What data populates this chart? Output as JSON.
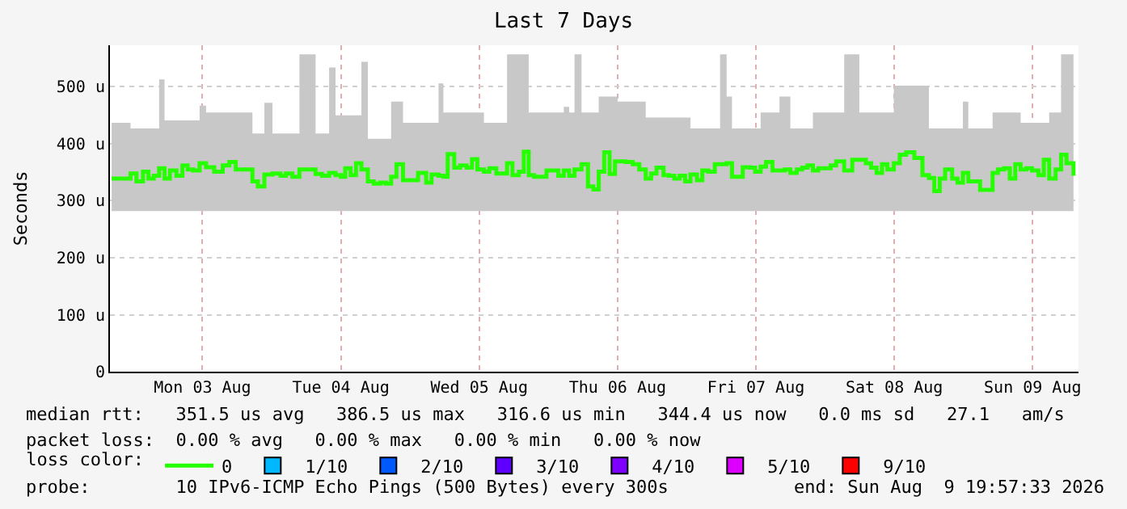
{
  "chart_data": {
    "type": "step",
    "title": "Last 7 Days",
    "ylabel": "Seconds",
    "legend_title": "loss color:",
    "xlim": [
      "2026-08-02T19:57",
      "2026-08-09T19:57"
    ],
    "xticks": [
      {
        "value": "2026-08-03T12:00",
        "label": "Mon 03 Aug"
      },
      {
        "value": "2026-08-04T12:00",
        "label": "Tue 04 Aug"
      },
      {
        "value": "2026-08-05T12:00",
        "label": "Wed 05 Aug"
      },
      {
        "value": "2026-08-06T12:00",
        "label": "Thu 06 Aug"
      },
      {
        "value": "2026-08-07T12:00",
        "label": "Fri 07 Aug"
      },
      {
        "value": "2026-08-08T12:00",
        "label": "Sat 08 Aug"
      },
      {
        "value": "2026-08-09T12:00",
        "label": "Sun 09 Aug"
      }
    ],
    "ylim": [
      0,
      573
    ],
    "yticks": [
      0,
      {
        "value": 100,
        "label": "100 u"
      },
      {
        "value": 200,
        "label": "200 u"
      },
      {
        "value": 300,
        "label": "300 u"
      },
      {
        "value": 400,
        "label": "400 u"
      },
      {
        "value": 500,
        "label": "500 u"
      }
    ],
    "grid": true,
    "legend": "bottom",
    "x": [
      "2026-08-02T20:15",
      "2026-08-02T22:24",
      "2026-08-02T23:31",
      "2026-08-03T00:33",
      "2026-08-03T01:41",
      "2026-08-03T02:37",
      "2026-08-03T03:33",
      "2026-08-03T04:29",
      "2026-08-03T05:25",
      "2026-08-03T06:21",
      "2026-08-03T07:29",
      "2026-08-03T08:31",
      "2026-08-03T09:26",
      "2026-08-03T10:23",
      "2026-08-03T11:30",
      "2026-08-03T12:37",
      "2026-08-03T14:02",
      "2026-08-03T15:31",
      "2026-08-03T16:39",
      "2026-08-03T17:46",
      "2026-08-03T18:59",
      "2026-08-03T20:40",
      "2026-08-03T21:37",
      "2026-08-03T22:44",
      "2026-08-04T00:08",
      "2026-08-04T01:32",
      "2026-08-04T02:28",
      "2026-08-04T03:35",
      "2026-08-04T04:49",
      "2026-08-04T06:13",
      "2026-08-04T07:37",
      "2026-08-04T08:44",
      "2026-08-04T09:58",
      "2026-08-04T11:05",
      "2026-08-04T12:01",
      "2026-08-04T12:46",
      "2026-08-04T13:42",
      "2026-08-04T14:38",
      "2026-08-04T15:34",
      "2026-08-04T16:41",
      "2026-08-04T17:43",
      "2026-08-04T18:51",
      "2026-08-04T19:47",
      "2026-08-04T20:43",
      "2026-08-04T21:39",
      "2026-08-04T22:47",
      "2026-08-05T00:28",
      "2026-08-05T01:24",
      "2026-08-05T02:48",
      "2026-08-05T03:44",
      "2026-08-05T04:57",
      "2026-08-05T05:47",
      "2026-08-05T06:32",
      "2026-08-05T07:40",
      "2026-08-05T08:41",
      "2026-08-05T09:49",
      "2026-08-05T10:45",
      "2026-08-05T11:41",
      "2026-08-05T12:49",
      "2026-08-05T13:45",
      "2026-08-05T14:58",
      "2026-08-05T15:54",
      "2026-08-05T16:50",
      "2026-08-05T17:46",
      "2026-08-05T18:53",
      "2026-08-05T19:44",
      "2026-08-05T20:35",
      "2026-08-05T21:31",
      "2026-08-05T22:44",
      "2026-08-05T23:40",
      "2026-08-06T00:47",
      "2026-08-06T01:43",
      "2026-08-06T02:40",
      "2026-08-06T03:36",
      "2026-08-06T04:32",
      "2026-08-06T05:45",
      "2026-08-06T06:52",
      "2026-08-06T07:49",
      "2026-08-06T08:44",
      "2026-08-06T09:41",
      "2026-08-06T10:37",
      "2026-08-06T11:33",
      "2026-08-06T12:01",
      "2026-08-06T13:25",
      "2026-08-06T14:38",
      "2026-08-06T15:46",
      "2026-08-06T16:53",
      "2026-08-06T17:49",
      "2026-08-06T18:45",
      "2026-08-06T19:58",
      "2026-08-06T20:54",
      "2026-08-06T21:50",
      "2026-08-06T22:46",
      "2026-08-06T23:43",
      "2026-08-07T00:39",
      "2026-08-07T01:46",
      "2026-08-07T02:42",
      "2026-08-07T03:44",
      "2026-08-07T04:52",
      "2026-08-07T05:47",
      "2026-08-07T06:55",
      "2026-08-07T07:51",
      "2026-08-07T08:47",
      "2026-08-07T09:43",
      "2026-08-07T10:56",
      "2026-08-07T11:52",
      "2026-08-07T12:49",
      "2026-08-07T13:45",
      "2026-08-07T14:52",
      "2026-08-07T16:05",
      "2026-08-07T17:01",
      "2026-08-07T17:58",
      "2026-08-07T19:05",
      "2026-08-07T20:01",
      "2026-08-07T20:57",
      "2026-08-07T21:53",
      "2026-08-07T22:49",
      "2026-08-08T00:02",
      "2026-08-08T00:58",
      "2026-08-08T01:55",
      "2026-08-08T03:19",
      "2026-08-08T04:43",
      "2026-08-08T05:56",
      "2026-08-08T07:04",
      "2026-08-08T07:59",
      "2026-08-08T08:56",
      "2026-08-08T09:52",
      "2026-08-08T10:48",
      "2026-08-08T11:55",
      "2026-08-08T12:57",
      "2026-08-08T14:04",
      "2026-08-08T15:29",
      "2026-08-08T16:53",
      "2026-08-08T18:00",
      "2026-08-08T18:56",
      "2026-08-08T19:53",
      "2026-08-08T20:49",
      "2026-08-08T22:02",
      "2026-08-08T22:58",
      "2026-08-08T23:54",
      "2026-08-09T00:50",
      "2026-08-09T01:46",
      "2026-08-09T02:53",
      "2026-08-09T04:07",
      "2026-08-09T05:03",
      "2026-08-09T05:59",
      "2026-08-09T07:01",
      "2026-08-09T08:02",
      "2026-08-09T08:59",
      "2026-08-09T09:55",
      "2026-08-09T10:56",
      "2026-08-09T11:53",
      "2026-08-09T13:00",
      "2026-08-09T13:56",
      "2026-08-09T14:52",
      "2026-08-09T15:59",
      "2026-08-09T16:56",
      "2026-08-09T17:52",
      "2026-08-09T19:05"
    ],
    "series": [
      {
        "name": "0",
        "color": "#26ff00",
        "values": [
          339,
          339,
          348,
          334,
          351,
          339,
          344,
          357,
          339,
          353,
          344,
          362,
          355,
          353,
          366,
          359,
          351,
          362,
          368,
          355,
          355,
          334,
          325,
          346,
          348,
          344,
          348,
          342,
          355,
          355,
          347,
          344,
          349,
          345,
          342,
          357,
          345,
          366,
          355,
          334,
          330,
          332,
          330,
          342,
          364,
          336,
          336,
          349,
          332,
          346,
          344,
          342,
          382,
          358,
          362,
          358,
          373,
          355,
          351,
          357,
          348,
          348,
          366,
          345,
          351,
          386,
          345,
          342,
          342,
          353,
          353,
          344,
          353,
          344,
          355,
          364,
          325,
          320,
          351,
          385,
          347,
          369,
          369,
          368,
          364,
          355,
          339,
          348,
          358,
          345,
          344,
          339,
          344,
          334,
          346,
          336,
          353,
          351,
          364,
          364,
          366,
          342,
          342,
          359,
          358,
          351,
          360,
          368,
          353,
          353,
          355,
          349,
          355,
          358,
          362,
          353,
          357,
          357,
          362,
          369,
          353,
          372,
          372,
          366,
          358,
          349,
          364,
          355,
          366,
          381,
          385,
          375,
          345,
          340,
          317,
          339,
          355,
          339,
          332,
          349,
          334,
          334,
          319,
          319,
          349,
          355,
          357,
          339,
          364,
          355,
          357,
          353,
          345,
          372,
          339,
          355,
          381,
          366,
          344
        ],
        "lower": [
          282,
          282,
          282,
          282,
          282,
          282,
          282,
          282,
          282,
          282,
          282,
          282,
          282,
          282,
          282,
          282,
          282,
          282,
          282,
          282,
          282,
          282,
          282,
          282,
          282,
          282,
          282,
          282,
          282,
          282,
          282,
          282,
          282,
          282,
          282,
          282,
          282,
          282,
          282,
          282,
          282,
          282,
          282,
          282,
          282,
          282,
          282,
          282,
          282,
          282,
          282,
          282,
          282,
          282,
          282,
          282,
          282,
          282,
          282,
          282,
          282,
          282,
          282,
          282,
          282,
          282,
          282,
          282,
          282,
          282,
          282,
          282,
          282,
          282,
          282,
          282,
          282,
          282,
          282,
          282,
          282,
          282,
          282,
          282,
          282,
          282,
          282,
          282,
          282,
          282,
          282,
          282,
          282,
          282,
          282,
          282,
          282,
          282,
          282,
          282,
          282,
          282,
          282,
          282,
          282,
          282,
          282,
          282,
          282,
          282,
          282,
          282,
          282,
          282,
          282,
          282,
          282,
          282,
          282,
          282,
          282,
          282,
          282,
          282,
          282,
          282,
          282,
          282,
          282,
          282,
          282,
          282,
          282,
          282,
          282,
          282,
          282,
          282,
          282,
          282,
          282,
          282,
          282,
          282,
          282,
          282,
          282,
          282,
          282,
          282,
          282,
          282,
          282,
          282,
          282,
          282,
          282,
          282,
          282
        ],
        "upper": [
          437,
          437,
          427,
          427,
          427,
          427,
          427,
          513,
          441,
          441,
          441,
          441,
          441,
          441,
          467,
          455,
          455,
          455,
          455,
          455,
          455,
          418,
          418,
          472,
          418,
          418,
          418,
          418,
          557,
          557,
          418,
          418,
          534,
          450,
          450,
          450,
          450,
          450,
          544,
          409,
          409,
          409,
          409,
          474,
          474,
          437,
          437,
          437,
          437,
          437,
          506,
          455,
          455,
          455,
          455,
          455,
          455,
          455,
          437,
          437,
          437,
          437,
          557,
          557,
          557,
          557,
          455,
          455,
          455,
          455,
          455,
          455,
          465,
          455,
          557,
          455,
          455,
          455,
          483,
          483,
          483,
          483,
          474,
          474,
          474,
          474,
          446,
          446,
          446,
          446,
          446,
          446,
          446,
          446,
          427,
          427,
          427,
          427,
          427,
          557,
          483,
          427,
          427,
          427,
          427,
          427,
          455,
          455,
          455,
          483,
          483,
          427,
          427,
          427,
          427,
          455,
          455,
          455,
          455,
          455,
          557,
          557,
          455,
          455,
          455,
          455,
          455,
          455,
          502,
          502,
          502,
          502,
          502,
          427,
          427,
          427,
          427,
          427,
          427,
          474,
          427,
          427,
          427,
          427,
          455,
          455,
          455,
          455,
          455,
          437,
          437,
          437,
          437,
          437,
          455,
          455,
          557,
          557,
          557
        ]
      },
      {
        "name": "1/10",
        "color": "#00b8ff",
        "type": "scatter",
        "values": [
          null,
          null,
          null,
          null,
          null,
          null,
          null,
          null,
          null,
          null,
          null,
          null,
          null,
          null,
          null,
          null,
          null,
          null,
          null,
          null,
          null,
          null,
          null,
          null,
          null,
          null,
          null,
          null,
          null,
          null,
          null,
          null,
          null,
          null,
          null,
          null,
          null,
          null,
          null,
          null,
          null,
          null,
          null,
          null,
          null,
          null,
          null,
          null,
          null,
          null,
          null,
          null,
          null,
          null,
          null,
          null,
          null,
          null,
          null,
          null,
          null,
          null,
          null,
          null,
          null,
          null,
          null,
          null,
          null,
          null,
          null,
          null,
          null,
          null,
          null,
          null,
          null,
          null,
          null,
          null,
          null,
          null,
          null,
          null,
          null,
          null,
          null,
          null,
          null,
          null,
          null,
          null,
          null,
          null,
          null,
          null,
          null,
          null,
          null,
          null,
          null,
          null,
          null,
          null,
          null,
          null,
          null,
          null,
          null,
          null,
          null,
          null,
          null,
          null,
          null,
          null,
          null,
          null,
          null,
          null,
          null,
          null,
          null,
          null,
          null,
          null,
          null,
          null,
          null,
          null,
          null,
          null,
          null,
          null,
          null,
          null,
          null,
          null,
          null,
          null,
          null,
          null,
          null,
          null,
          null,
          null,
          null,
          null,
          null,
          null,
          null,
          null,
          null,
          null,
          null,
          null,
          null,
          null,
          null
        ]
      },
      {
        "name": "2/10",
        "color": "#0059ff",
        "type": "scatter",
        "values": [
          null,
          null,
          null,
          null,
          null,
          null,
          null,
          null,
          null,
          null,
          null,
          null,
          null,
          null,
          null,
          null,
          null,
          null,
          null,
          null,
          null,
          null,
          null,
          null,
          null,
          null,
          null,
          null,
          null,
          null,
          null,
          null,
          null,
          null,
          null,
          null,
          null,
          null,
          null,
          null,
          null,
          null,
          null,
          null,
          null,
          null,
          null,
          null,
          null,
          null,
          null,
          null,
          null,
          null,
          null,
          null,
          null,
          null,
          null,
          null,
          null,
          null,
          null,
          null,
          null,
          null,
          null,
          null,
          null,
          null,
          null,
          null,
          null,
          null,
          null,
          null,
          null,
          null,
          null,
          null,
          null,
          null,
          null,
          null,
          null,
          null,
          null,
          null,
          null,
          null,
          null,
          null,
          null,
          null,
          null,
          null,
          null,
          null,
          null,
          null,
          null,
          null,
          null,
          null,
          null,
          null,
          null,
          null,
          null,
          null,
          null,
          null,
          null,
          null,
          null,
          null,
          null,
          null,
          null,
          null,
          null,
          null,
          null,
          null,
          null,
          null,
          null,
          null,
          null,
          null,
          null,
          null,
          null,
          null,
          null,
          null,
          null,
          null,
          null,
          null,
          null,
          null,
          null,
          null,
          null,
          null,
          null,
          null,
          null,
          null,
          null,
          null,
          null,
          null,
          null,
          null,
          null,
          null,
          null
        ]
      },
      {
        "name": "3/10",
        "color": "#5e00ff",
        "type": "scatter",
        "values": [
          null,
          null,
          null,
          null,
          null,
          null,
          null,
          null,
          null,
          null,
          null,
          null,
          null,
          null,
          null,
          null,
          null,
          null,
          null,
          null,
          null,
          null,
          null,
          null,
          null,
          null,
          null,
          null,
          null,
          null,
          null,
          null,
          null,
          null,
          null,
          null,
          null,
          null,
          null,
          null,
          null,
          null,
          null,
          null,
          null,
          null,
          null,
          null,
          null,
          null,
          null,
          null,
          null,
          null,
          null,
          null,
          null,
          null,
          null,
          null,
          null,
          null,
          null,
          null,
          null,
          null,
          null,
          null,
          null,
          null,
          null,
          null,
          null,
          null,
          null,
          null,
          null,
          null,
          null,
          null,
          null,
          null,
          null,
          null,
          null,
          null,
          null,
          null,
          null,
          null,
          null,
          null,
          null,
          null,
          null,
          null,
          null,
          null,
          null,
          null,
          null,
          null,
          null,
          null,
          null,
          null,
          null,
          null,
          null,
          null,
          null,
          null,
          null,
          null,
          null,
          null,
          null,
          null,
          null,
          null,
          null,
          null,
          null,
          null,
          null,
          null,
          null,
          null,
          null,
          null,
          null,
          null,
          null,
          null,
          null,
          null,
          null,
          null,
          null,
          null,
          null,
          null,
          null,
          null,
          null,
          null,
          null,
          null,
          null,
          null,
          null,
          null,
          null,
          null,
          null,
          null,
          null,
          null,
          null
        ]
      },
      {
        "name": "4/10",
        "color": "#7e00ff",
        "type": "scatter",
        "values": [
          null,
          null,
          null,
          null,
          null,
          null,
          null,
          null,
          null,
          null,
          null,
          null,
          null,
          null,
          null,
          null,
          null,
          null,
          null,
          null,
          null,
          null,
          null,
          null,
          null,
          null,
          null,
          null,
          null,
          null,
          null,
          null,
          null,
          null,
          null,
          null,
          null,
          null,
          null,
          null,
          null,
          null,
          null,
          null,
          null,
          null,
          null,
          null,
          null,
          null,
          null,
          null,
          null,
          null,
          null,
          null,
          null,
          null,
          null,
          null,
          null,
          null,
          null,
          null,
          null,
          null,
          null,
          null,
          null,
          null,
          null,
          null,
          null,
          null,
          null,
          null,
          null,
          null,
          null,
          null,
          null,
          null,
          null,
          null,
          null,
          null,
          null,
          null,
          null,
          null,
          null,
          null,
          null,
          null,
          null,
          null,
          null,
          null,
          null,
          null,
          null,
          null,
          null,
          null,
          null,
          null,
          null,
          null,
          null,
          null,
          null,
          null,
          null,
          null,
          null,
          null,
          null,
          null,
          null,
          null,
          null,
          null,
          null,
          null,
          null,
          null,
          null,
          null,
          null,
          null,
          null,
          null,
          null,
          null,
          null,
          null,
          null,
          null,
          null,
          null,
          null,
          null,
          null,
          null,
          null,
          null,
          null,
          null,
          null,
          null,
          null,
          null,
          null,
          null,
          null,
          null,
          null,
          null,
          null
        ]
      },
      {
        "name": "5/10",
        "color": "#dd00ff",
        "type": "scatter",
        "values": [
          null,
          null,
          null,
          null,
          null,
          null,
          null,
          null,
          null,
          null,
          null,
          null,
          null,
          null,
          null,
          null,
          null,
          null,
          null,
          null,
          null,
          null,
          null,
          null,
          null,
          null,
          null,
          null,
          null,
          null,
          null,
          null,
          null,
          null,
          null,
          null,
          null,
          null,
          null,
          null,
          null,
          null,
          null,
          null,
          null,
          null,
          null,
          null,
          null,
          null,
          null,
          null,
          null,
          null,
          null,
          null,
          null,
          null,
          null,
          null,
          null,
          null,
          null,
          null,
          null,
          null,
          null,
          null,
          null,
          null,
          null,
          null,
          null,
          null,
          null,
          null,
          null,
          null,
          null,
          null,
          null,
          null,
          null,
          null,
          null,
          null,
          null,
          null,
          null,
          null,
          null,
          null,
          null,
          null,
          null,
          null,
          null,
          null,
          null,
          null,
          null,
          null,
          null,
          null,
          null,
          null,
          null,
          null,
          null,
          null,
          null,
          null,
          null,
          null,
          null,
          null,
          null,
          null,
          null,
          null,
          null,
          null,
          null,
          null,
          null,
          null,
          null,
          null,
          null,
          null,
          null,
          null,
          null,
          null,
          null,
          null,
          null,
          null,
          null,
          null,
          null,
          null,
          null,
          null,
          null,
          null,
          null,
          null,
          null,
          null,
          null,
          null,
          null,
          null,
          null,
          null,
          null,
          null,
          null
        ]
      },
      {
        "name": "9/10",
        "color": "#ff0000",
        "type": "scatter",
        "values": [
          null,
          null,
          null,
          null,
          null,
          null,
          null,
          null,
          null,
          null,
          null,
          null,
          null,
          null,
          null,
          null,
          null,
          null,
          null,
          null,
          null,
          null,
          null,
          null,
          null,
          null,
          null,
          null,
          null,
          null,
          null,
          null,
          null,
          null,
          null,
          null,
          null,
          null,
          null,
          null,
          null,
          null,
          null,
          null,
          null,
          null,
          null,
          null,
          null,
          null,
          null,
          null,
          null,
          null,
          null,
          null,
          null,
          null,
          null,
          null,
          null,
          null,
          null,
          null,
          null,
          null,
          null,
          null,
          null,
          null,
          null,
          null,
          null,
          null,
          null,
          null,
          null,
          null,
          null,
          null,
          null,
          null,
          null,
          null,
          null,
          null,
          null,
          null,
          null,
          null,
          null,
          null,
          null,
          null,
          null,
          null,
          null,
          null,
          null,
          null,
          null,
          null,
          null,
          null,
          null,
          null,
          null,
          null,
          null,
          null,
          null,
          null,
          null,
          null,
          null,
          null,
          null,
          null,
          null,
          null,
          null,
          null,
          null,
          null,
          null,
          null,
          null,
          null,
          null,
          null,
          null,
          null,
          null,
          null,
          null,
          null,
          null,
          null,
          null,
          null,
          null,
          null,
          null,
          null,
          null,
          null,
          null,
          null,
          null,
          null,
          null,
          null,
          null,
          null,
          null,
          null,
          null,
          null,
          null
        ]
      }
    ],
    "annotations": [
      "median rtt:   351.5 us avg   386.5 us max   316.6 us min   344.4 us now   0.0 ms sd   27.1   am/s",
      "packet loss:  0.00 % avg   0.00 % max   0.00 % min   0.00 % now",
      "probe:        10 IPv6-ICMP Echo Pings (500 Bytes) every 300s",
      "end: Sun Aug  9 19:57:33 2026"
    ]
  }
}
